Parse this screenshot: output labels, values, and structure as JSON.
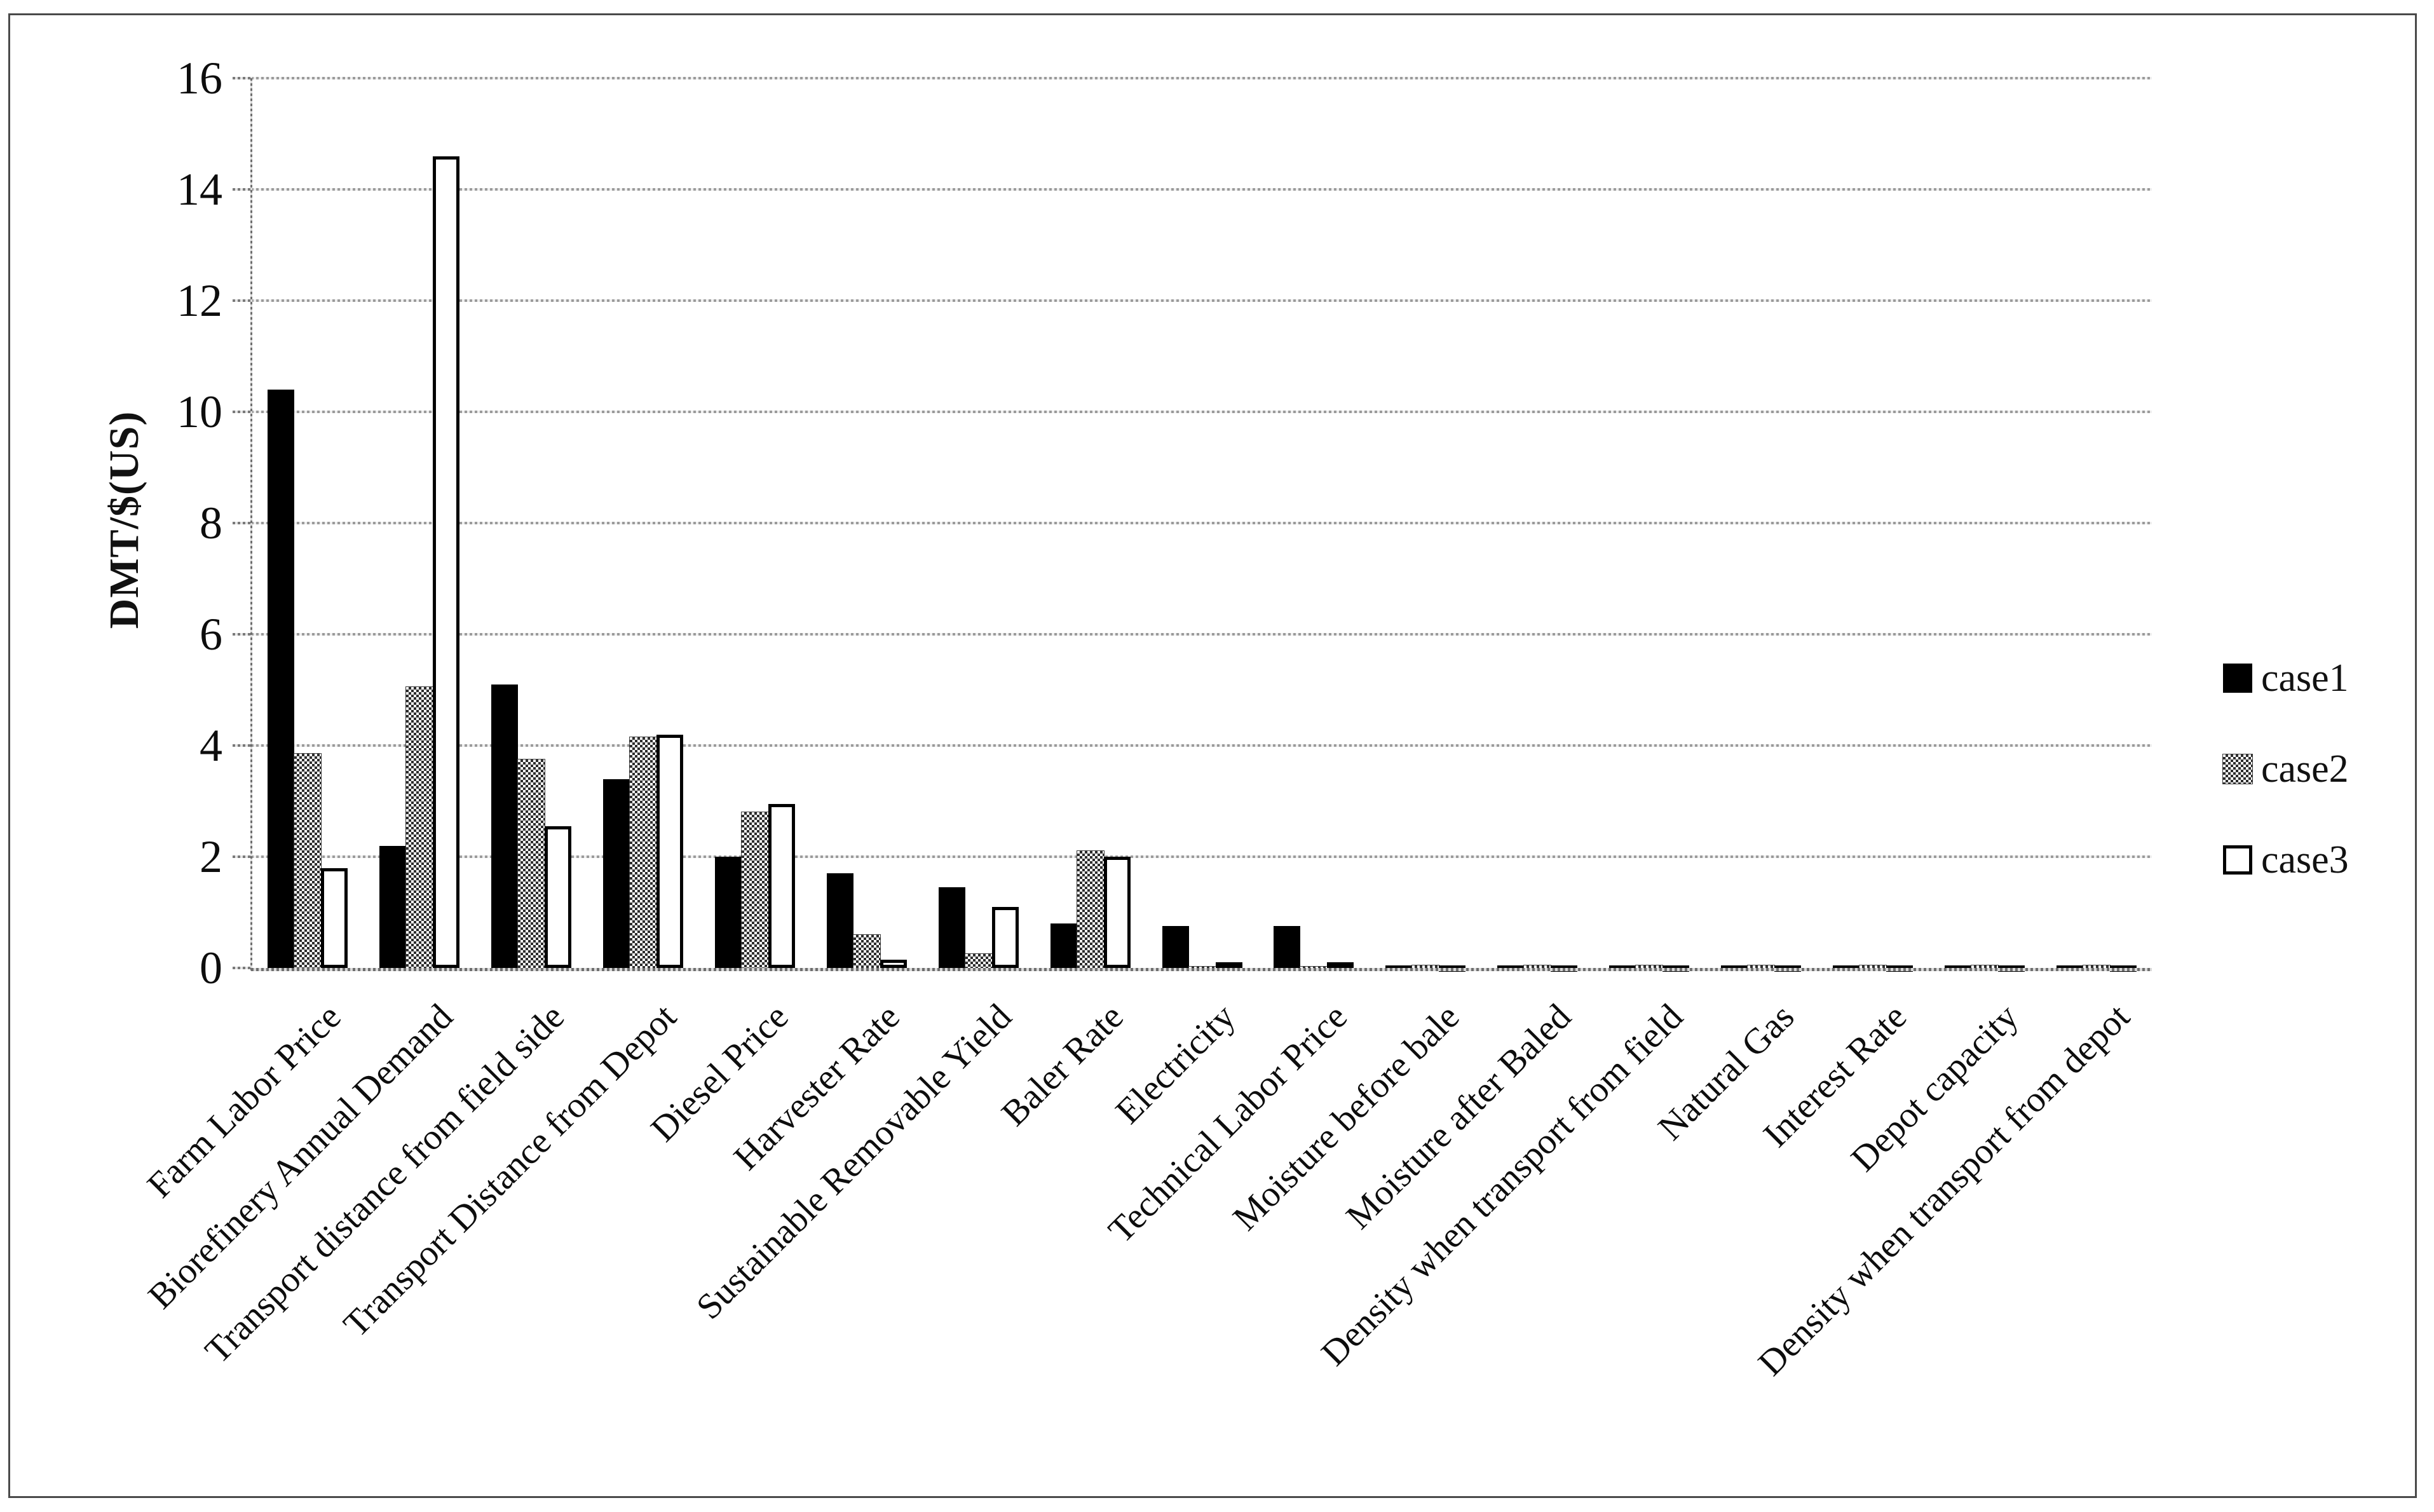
{
  "chart_data": {
    "type": "bar",
    "title": "",
    "ylabel": "DMT/$(US)",
    "xlabel": "",
    "ylim": [
      0,
      16
    ],
    "ytick_step": 2,
    "yticks": [
      0,
      2,
      4,
      6,
      8,
      10,
      12,
      14,
      16
    ],
    "grid": true,
    "legend_position": "right-middle",
    "categories": [
      "Farm Labor Price",
      "Biorefinery Annual Demand",
      "Transport distance from field side",
      "Transport Distance from Depot",
      "Diesel Price",
      "Harvester Rate",
      "Sustainable Removable Yield",
      "Baler Rate",
      "Electricity",
      "Technical Labor Price",
      "Moisture before bale",
      "Moisture after Baled",
      "Density when transport from field",
      "Natural Gas",
      "Interest Rate",
      "Depot capacity",
      "Density when transport from depot"
    ],
    "series": [
      {
        "name": "case1",
        "style": "solid-black",
        "values": [
          10.4,
          2.2,
          5.1,
          3.4,
          2.0,
          1.7,
          1.45,
          0.8,
          0.75,
          0.75,
          0.05,
          0.05,
          0.05,
          0.05,
          0.05,
          0.05,
          0.05
        ]
      },
      {
        "name": "case2",
        "style": "gray-halftone",
        "values": [
          3.85,
          5.05,
          3.75,
          4.15,
          2.8,
          0.6,
          0.25,
          2.1,
          0.02,
          0.02,
          0.05,
          0.05,
          0.05,
          0.05,
          0.05,
          0.05,
          0.05
        ]
      },
      {
        "name": "case3",
        "style": "white-with-black-outline",
        "values": [
          1.8,
          14.6,
          2.55,
          4.2,
          2.95,
          0.15,
          1.1,
          2.0,
          0.1,
          0.1,
          0.05,
          0.05,
          0.05,
          0.05,
          0.05,
          0.05,
          0.05
        ]
      }
    ],
    "colors": {
      "case1": "#000000",
      "case2_pattern": "#2e2e2e",
      "case3_fill": "#ffffff",
      "outline": "#000000",
      "gridline": "#9b9b9b",
      "axis": "#6f6f6f",
      "text": "#0d0d0d"
    }
  },
  "legend": {
    "items": [
      {
        "label": "case1",
        "swatch": "solid-black-square"
      },
      {
        "label": "case2",
        "swatch": "gray-halftone-square"
      },
      {
        "label": "case3",
        "swatch": "white-outlined-square"
      }
    ]
  }
}
